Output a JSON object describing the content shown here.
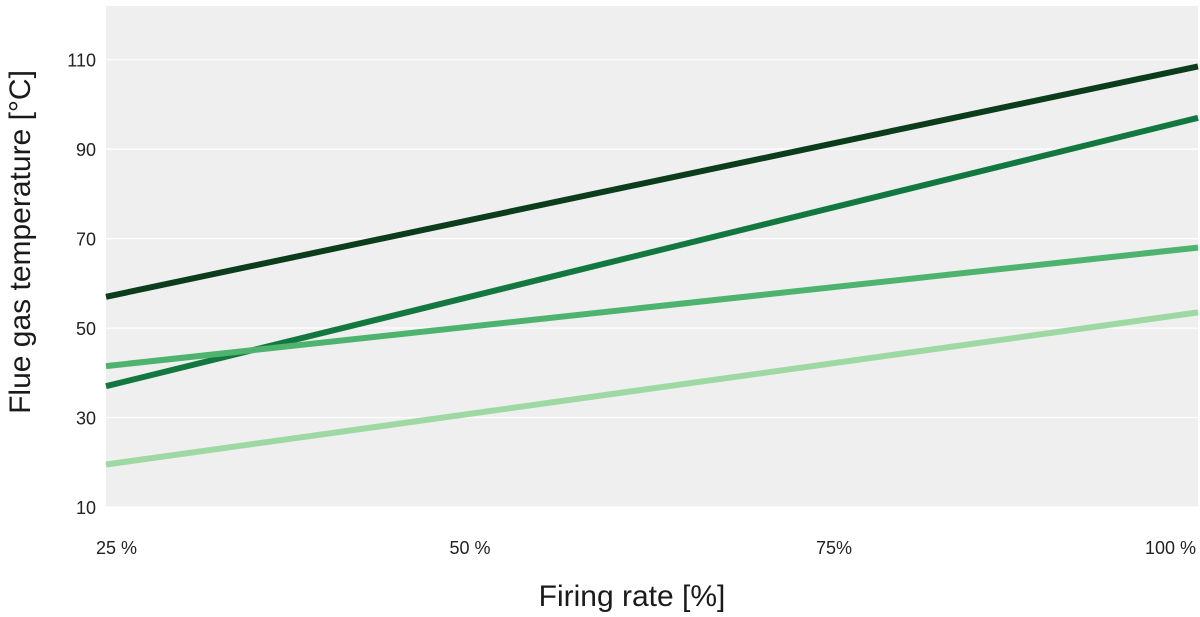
{
  "chart_data": {
    "type": "line",
    "title": "",
    "xlabel": "Firing rate [%]",
    "ylabel": "Flue gas temperature [°C]",
    "x": [
      25,
      100
    ],
    "xticks": [
      {
        "value": 25,
        "label": "25 %"
      },
      {
        "value": 50,
        "label": "50 %"
      },
      {
        "value": 75,
        "label": "75%"
      },
      {
        "value": 100,
        "label": "100 %"
      }
    ],
    "yticks": [
      {
        "value": 10,
        "label": "10"
      },
      {
        "value": 30,
        "label": "30"
      },
      {
        "value": 50,
        "label": "50"
      },
      {
        "value": 70,
        "label": "70"
      },
      {
        "value": 90,
        "label": "90"
      },
      {
        "value": 110,
        "label": "110"
      }
    ],
    "xlim": [
      25,
      100
    ],
    "ylim": [
      10,
      122
    ],
    "grid": true,
    "legend": "none",
    "series": [
      {
        "values": [
          57,
          108.5
        ],
        "color": "#0b3d1c"
      },
      {
        "values": [
          37,
          97
        ],
        "color": "#137840"
      },
      {
        "values": [
          41.5,
          68
        ],
        "color": "#4db36f"
      },
      {
        "values": [
          19.5,
          53.5
        ],
        "color": "#9ed9a4"
      }
    ],
    "colors": {
      "plot_background": "#efefef",
      "gridline": "#ffffff"
    }
  }
}
